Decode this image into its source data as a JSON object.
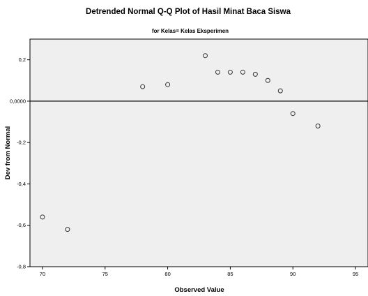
{
  "chart_data": {
    "type": "scatter",
    "title": "Detrended Normal Q-Q Plot of Hasil Minat Baca Siswa",
    "subtitle": "for Kelas= Kelas Eksperimen",
    "xlabel": "Observed Value",
    "ylabel": "Dev from Normal",
    "xlim": [
      69,
      96
    ],
    "ylim": [
      -0.8,
      0.3
    ],
    "x_ticks": [
      70,
      75,
      80,
      85,
      90,
      95
    ],
    "x_tick_labels": [
      "70",
      "75",
      "80",
      "85",
      "90",
      "95"
    ],
    "y_ticks": [
      0.2,
      0.0,
      -0.2,
      -0.4,
      -0.6,
      -0.8
    ],
    "y_tick_labels": [
      "0,2",
      "0,0000",
      "-0,2",
      "-0,4",
      "-0,6",
      "-0,8"
    ],
    "reference_line": 0,
    "grid": false,
    "colors": {
      "plot_background": "#efefef",
      "marker": "#333333",
      "reference_line": "#000000"
    },
    "points": [
      {
        "x": 70,
        "y": -0.56
      },
      {
        "x": 72,
        "y": -0.62
      },
      {
        "x": 78,
        "y": 0.07
      },
      {
        "x": 80,
        "y": 0.08
      },
      {
        "x": 83,
        "y": 0.22
      },
      {
        "x": 84,
        "y": 0.14
      },
      {
        "x": 85,
        "y": 0.14
      },
      {
        "x": 86,
        "y": 0.14
      },
      {
        "x": 87,
        "y": 0.13
      },
      {
        "x": 88,
        "y": 0.1
      },
      {
        "x": 89,
        "y": 0.05
      },
      {
        "x": 90,
        "y": -0.06
      },
      {
        "x": 92,
        "y": -0.12
      }
    ]
  }
}
